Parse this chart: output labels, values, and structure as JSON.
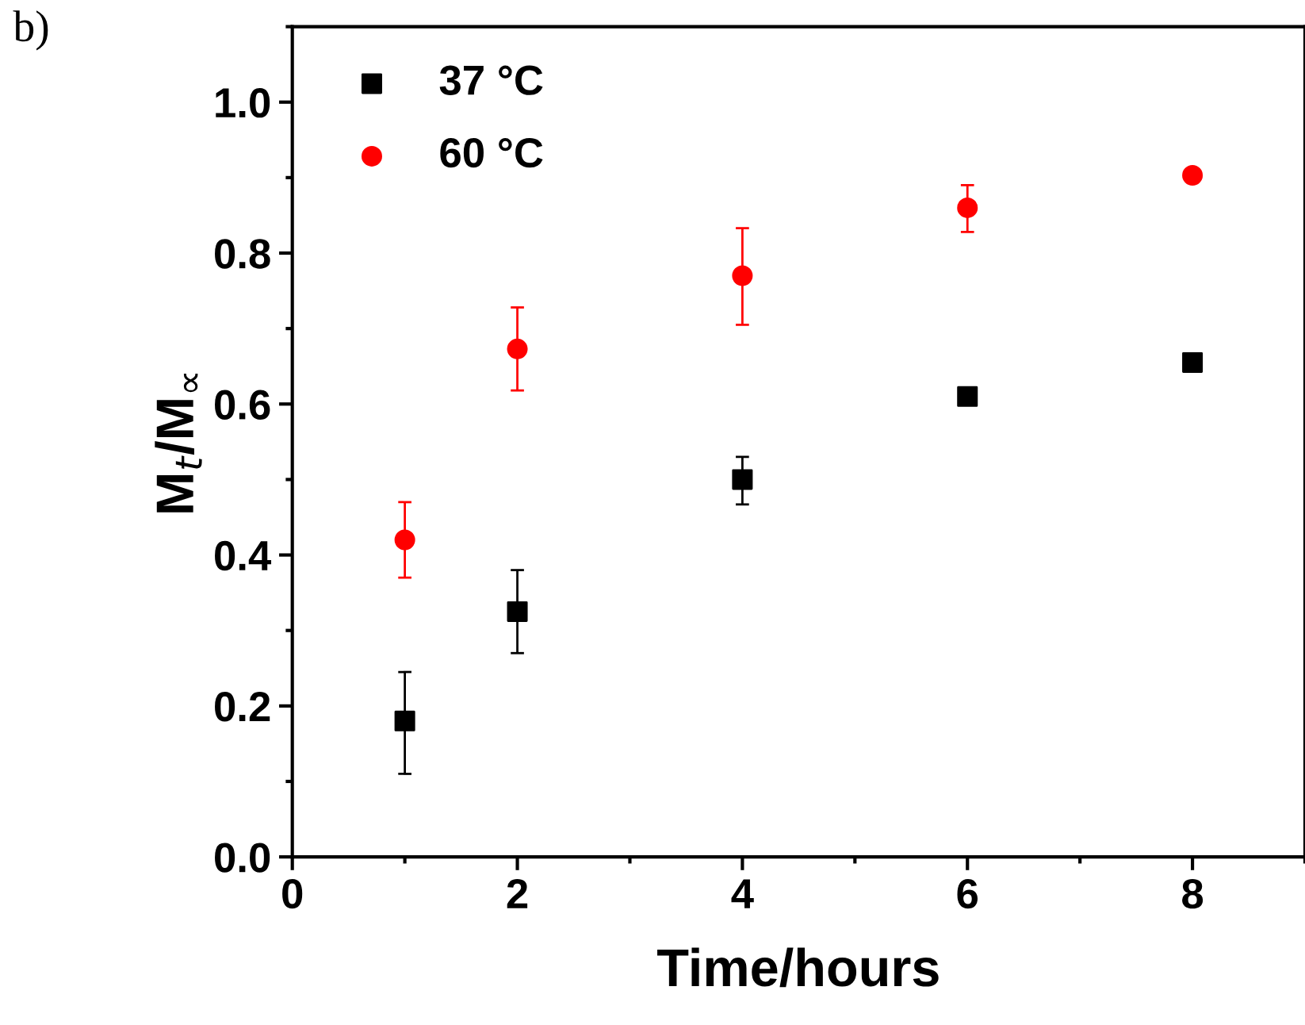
{
  "chart_data": {
    "type": "scatter",
    "xlabel": "Time/hours",
    "ylabel": "M$_{t}$/M$_{∝}$",
    "annotations": [
      "b)"
    ],
    "x": [
      1,
      2,
      4,
      6,
      8
    ],
    "series": [
      {
        "name": "37 °C",
        "color": "#000000",
        "marker": "square",
        "values": [
          0.18,
          0.325,
          0.5,
          0.61,
          0.655
        ],
        "errors": [
          [
            0.11,
            0.245
          ],
          [
            0.27,
            0.38
          ],
          [
            0.467,
            0.53
          ],
          [
            0.6,
            0.62
          ],
          null
        ]
      },
      {
        "name": "60 °C",
        "color": "#ff0000",
        "marker": "circle",
        "values": [
          0.42,
          0.673,
          0.77,
          0.86,
          0.903
        ],
        "errors": [
          [
            0.37,
            0.47
          ],
          [
            0.618,
            0.728
          ],
          [
            0.705,
            0.833
          ],
          [
            0.828,
            0.89
          ],
          [
            0.895,
            0.911
          ]
        ]
      }
    ],
    "xlim": [
      0,
      9
    ],
    "xticks": [
      0,
      2,
      4,
      6,
      8
    ],
    "ylim": [
      0,
      1.1
    ],
    "yticks": [
      {
        "value": 0,
        "label": "0.0"
      },
      0.2,
      0.4,
      0.6,
      0.8,
      {
        "value": 1,
        "label": "1.0"
      }
    ],
    "legend": "top left",
    "grid": false
  }
}
